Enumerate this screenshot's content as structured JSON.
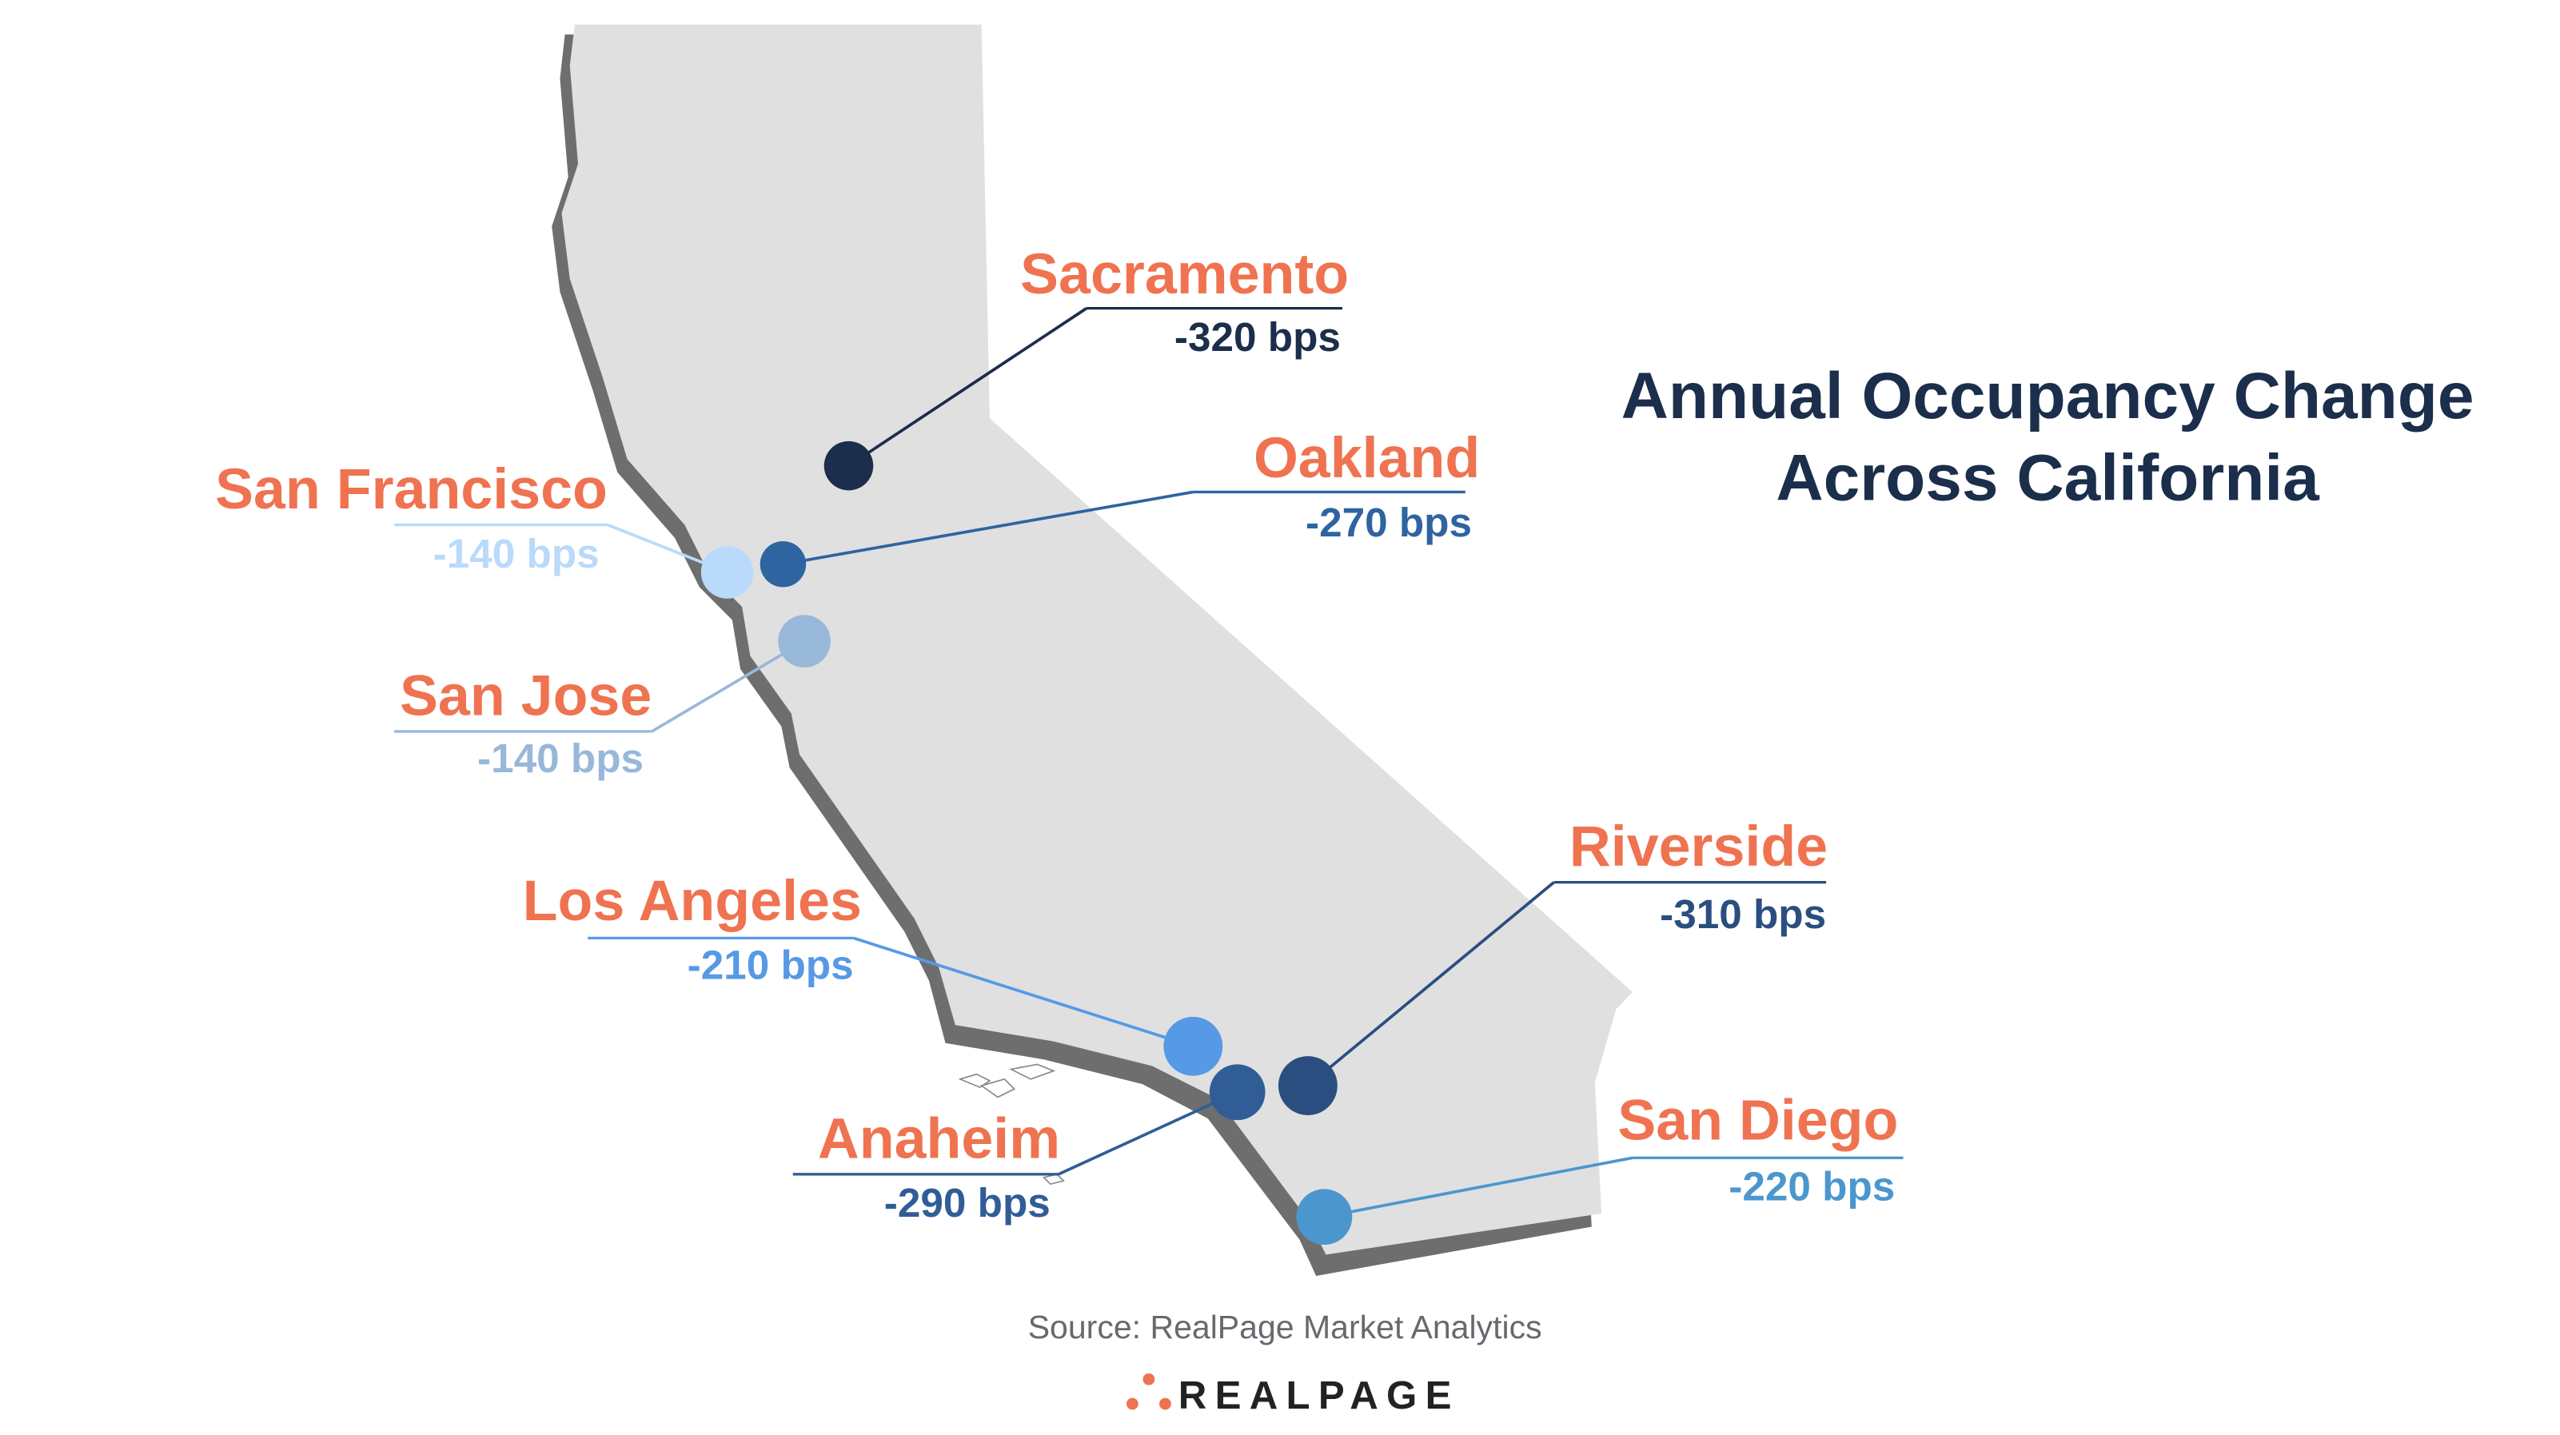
{
  "title": {
    "line1": "Annual Occupancy Change",
    "line2": "Across California",
    "color": "#1b2e4b"
  },
  "source": "Source: RealPage Market Analytics",
  "logo": {
    "text": "REALPAGE",
    "dot_color": "#ef7350"
  },
  "label_color": "#ef7350",
  "map_fill": "#e0e0e0",
  "coast_shadow": "#6e6e6e",
  "cities": [
    {
      "name": "Sacramento",
      "value": "-320 bps",
      "color": "#1b2e4b"
    },
    {
      "name": "Oakland",
      "value": "-270 bps",
      "color": "#2e64a0"
    },
    {
      "name": "San Francisco",
      "value": "-140 bps",
      "color": "#b9dafa"
    },
    {
      "name": "San Jose",
      "value": "-140 bps",
      "color": "#98b8d9"
    },
    {
      "name": "Los Angeles",
      "value": "-210 bps",
      "color": "#5699e6"
    },
    {
      "name": "Riverside",
      "value": "-310 bps",
      "color": "#2a4e80"
    },
    {
      "name": "Anaheim",
      "value": "-290 bps",
      "color": "#315d97"
    },
    {
      "name": "San Diego",
      "value": "-220 bps",
      "color": "#4b97cd"
    }
  ]
}
